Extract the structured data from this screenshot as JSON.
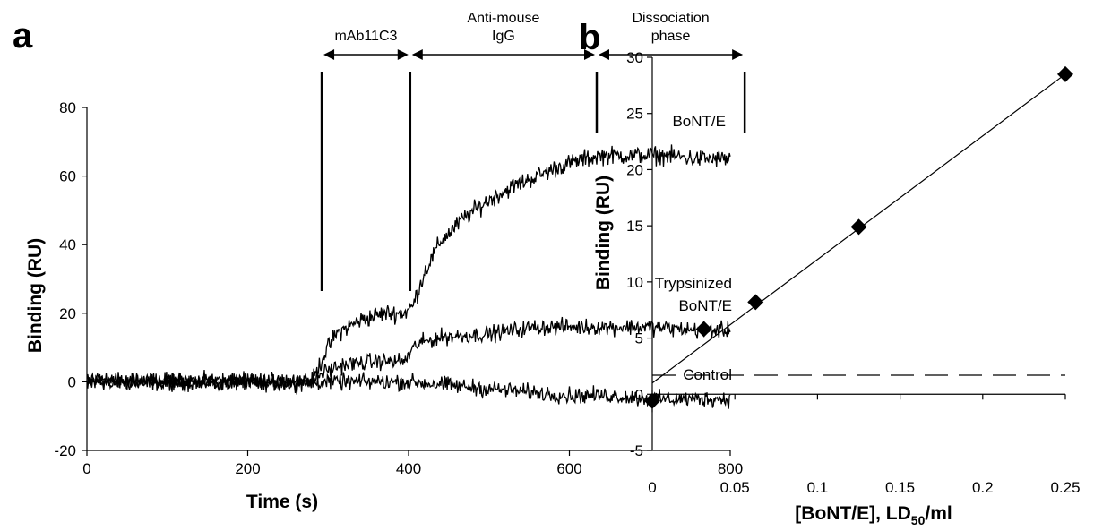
{
  "chart_data": [
    {
      "panel": "a",
      "type": "line",
      "xlabel": "Time (s)",
      "ylabel": "Binding (RU)",
      "xlim": [
        0,
        800
      ],
      "ylim": [
        -20,
        80
      ],
      "xticks": [
        0,
        200,
        400,
        600,
        800
      ],
      "yticks": [
        -20,
        0,
        20,
        40,
        60,
        80
      ],
      "phases": [
        {
          "label_lines": [
            "mAb11C3"
          ],
          "x_start": 292,
          "x_end": 402
        },
        {
          "label_lines": [
            "Anti-mouse",
            "IgG"
          ],
          "x_start": 402,
          "x_end": 634
        },
        {
          "label_lines": [
            "Dissociation",
            "phase"
          ],
          "x_start": 634,
          "x_end": 818
        }
      ],
      "event_markers_x": [
        292,
        402,
        634,
        818
      ],
      "series": [
        {
          "name": "BoNT/E",
          "noise": 2.0,
          "x": [
            0,
            280,
            295,
            310,
            340,
            370,
            395,
            405,
            420,
            440,
            470,
            500,
            530,
            560,
            590,
            620,
            640,
            680,
            720,
            760,
            800
          ],
          "y": [
            0,
            0,
            8,
            14,
            18,
            20,
            20,
            22,
            32,
            41,
            48,
            53,
            57,
            60,
            63,
            65,
            66,
            66,
            66,
            65,
            65
          ]
        },
        {
          "name": "Trypsinized BoNT/E",
          "noise": 1.8,
          "x": [
            0,
            280,
            295,
            320,
            360,
            395,
            410,
            440,
            500,
            560,
            640,
            700,
            760,
            800
          ],
          "y": [
            0,
            0,
            3,
            5,
            6,
            6,
            11,
            13,
            14,
            16,
            16,
            16,
            15,
            15
          ],
          "label_lines": [
            "Trypsinized",
            "BoNT/E"
          ]
        },
        {
          "name": "Control",
          "noise": 1.8,
          "x": [
            0,
            300,
            400,
            450,
            500,
            550,
            600,
            650,
            700,
            750,
            800
          ],
          "y": [
            0,
            0,
            0,
            -1,
            -2,
            -3,
            -4,
            -4,
            -5,
            -5,
            -5
          ]
        }
      ]
    },
    {
      "panel": "b",
      "type": "scatter",
      "xlabel": "[BoNT/E], LD",
      "xlabel_subscript": "50",
      "xlabel_suffix": "/ml",
      "ylabel": "Binding (RU)",
      "xlim": [
        0,
        0.25
      ],
      "ylim": [
        -5,
        30
      ],
      "xticks": [
        "0",
        "0.05",
        "0.1",
        "0.15",
        "0.2",
        "0.25"
      ],
      "yticks": [
        "-5",
        "0",
        "5",
        "10",
        "15",
        "20",
        "25",
        "30"
      ],
      "points": {
        "x": [
          0,
          0.03125,
          0.0625,
          0.125,
          0.25
        ],
        "y": [
          -0.6,
          5.8,
          8.2,
          14.9,
          28.5
        ],
        "err": [
          1.0,
          0.7,
          0.4,
          0.3,
          0.3
        ]
      },
      "fit_line": {
        "slope": 110.0,
        "intercept": 1.0
      },
      "threshold_y": 1.7
    }
  ],
  "panels": [
    "a",
    "b"
  ]
}
